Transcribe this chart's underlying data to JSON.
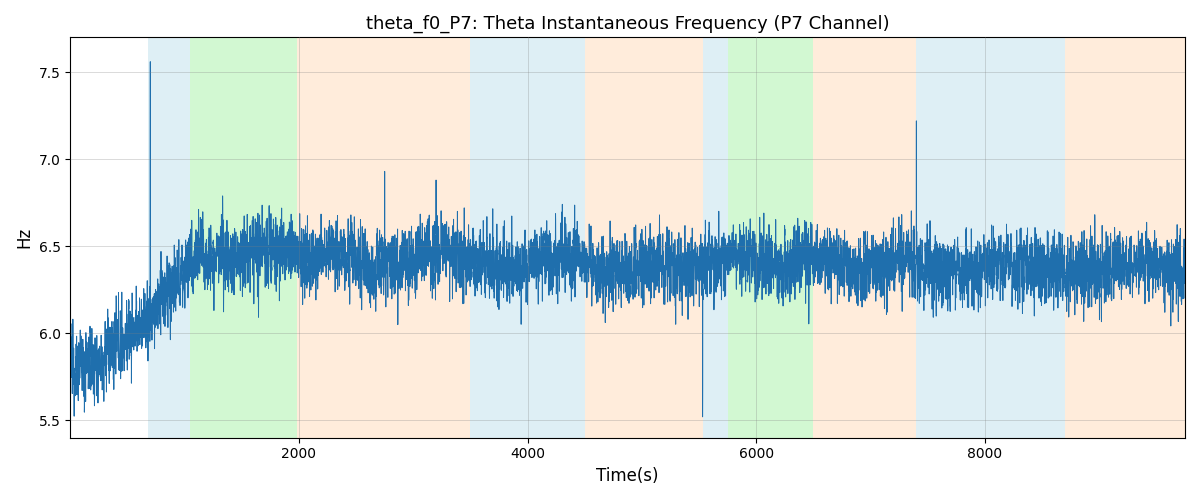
{
  "title": "theta_f0_P7: Theta Instantaneous Frequency (P7 Channel)",
  "xlabel": "Time(s)",
  "ylabel": "Hz",
  "ylim": [
    5.4,
    7.7
  ],
  "xlim": [
    0,
    9750
  ],
  "line_color": "#1f6fad",
  "line_width": 0.7,
  "seed": 12345,
  "n_points": 9500,
  "colored_bands": [
    {
      "xmin": 680,
      "xmax": 1050,
      "color": "#add8e6",
      "alpha": 0.4
    },
    {
      "xmin": 1050,
      "xmax": 1980,
      "color": "#90ee90",
      "alpha": 0.4
    },
    {
      "xmin": 1980,
      "xmax": 3500,
      "color": "#ffdab9",
      "alpha": 0.5
    },
    {
      "xmin": 3500,
      "xmax": 4500,
      "color": "#add8e6",
      "alpha": 0.4
    },
    {
      "xmin": 4500,
      "xmax": 5530,
      "color": "#ffdab9",
      "alpha": 0.5
    },
    {
      "xmin": 5530,
      "xmax": 5750,
      "color": "#add8e6",
      "alpha": 0.4
    },
    {
      "xmin": 5750,
      "xmax": 6500,
      "color": "#90ee90",
      "alpha": 0.4
    },
    {
      "xmin": 6500,
      "xmax": 7400,
      "color": "#ffdab9",
      "alpha": 0.5
    },
    {
      "xmin": 7400,
      "xmax": 7620,
      "color": "#add8e6",
      "alpha": 0.4
    },
    {
      "xmin": 7620,
      "xmax": 8700,
      "color": "#add8e6",
      "alpha": 0.4
    },
    {
      "xmin": 8700,
      "xmax": 9750,
      "color": "#ffdab9",
      "alpha": 0.5
    }
  ],
  "xticks": [
    2000,
    4000,
    6000,
    8000
  ],
  "yticks": [
    5.5,
    6.0,
    6.5,
    7.0,
    7.5
  ],
  "title_fontsize": 13,
  "label_fontsize": 12
}
